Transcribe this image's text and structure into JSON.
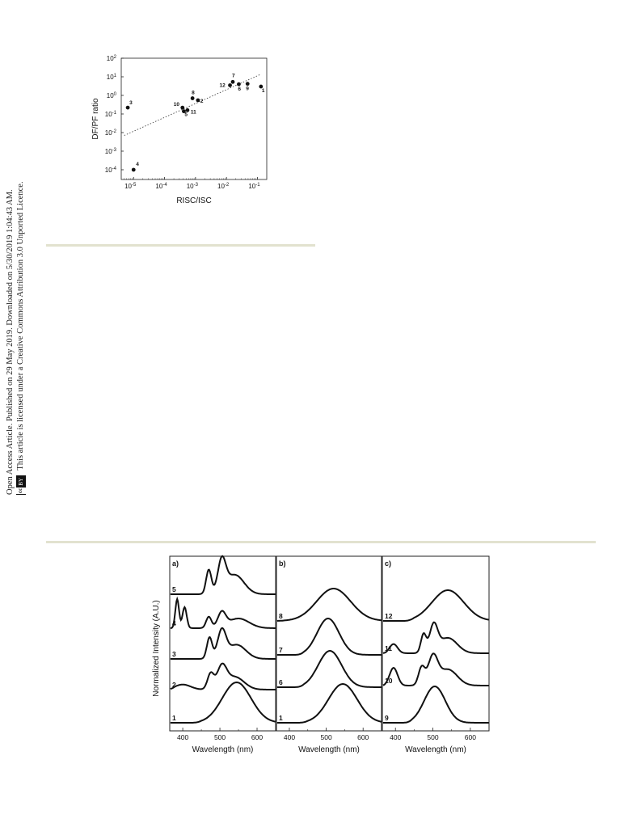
{
  "side_note": {
    "line1": "Open Access Article. Published on 29 May 2019. Downloaded on 5/30/2019 1:04:43 AM.",
    "line2": "This article is licensed under a Creative Commons Attribution 3.0 Unported Licence.",
    "badge_cc": "cc",
    "badge_by": "BY"
  },
  "chart_data": [
    {
      "type": "scatter",
      "xlabel": "RISC/ISC",
      "ylabel": "DF/PF ratio",
      "x_scale": "log",
      "y_scale": "log",
      "xlim": [
        4e-06,
        0.2
      ],
      "ylim": [
        3e-05,
        100
      ],
      "x_ticks": [
        "10-5",
        "10-4",
        "10-3",
        "10-2",
        "10-1"
      ],
      "y_ticks": [
        "10-4",
        "10-3",
        "10-2",
        "10-1",
        "100",
        "101",
        "102"
      ],
      "points": [
        {
          "label": "1",
          "x": 0.13,
          "y": 3.0
        },
        {
          "label": "2",
          "x": 0.0012,
          "y": 0.55
        },
        {
          "label": "3",
          "x": 6.5e-06,
          "y": 0.22
        },
        {
          "label": "4",
          "x": 1e-05,
          "y": 0.0001
        },
        {
          "label": "5",
          "x": 0.00042,
          "y": 0.14
        },
        {
          "label": "6",
          "x": 0.025,
          "y": 4.0
        },
        {
          "label": "7",
          "x": 0.016,
          "y": 5.3
        },
        {
          "label": "8",
          "x": 0.0008,
          "y": 0.7
        },
        {
          "label": "9",
          "x": 0.048,
          "y": 4.2
        },
        {
          "label": "10",
          "x": 0.00038,
          "y": 0.22
        },
        {
          "label": "11",
          "x": 0.00055,
          "y": 0.16
        },
        {
          "label": "12",
          "x": 0.013,
          "y": 3.5
        }
      ],
      "fit_line": {
        "x": [
          5e-06,
          0.12
        ],
        "y": [
          0.007,
          13
        ]
      },
      "grid": false,
      "legend": "none"
    },
    {
      "type": "line",
      "ylabel": "Normalized Intensity (A.U.)",
      "xlabel": "Wavelength (nm)",
      "xlim": [
        365,
        650
      ],
      "x_ticks": [
        400,
        500,
        600
      ],
      "y_units": "stacked, normalized",
      "panels": [
        {
          "label": "a)",
          "series": [
            {
              "name": "1",
              "offset": 0,
              "peaks": [
                {
                  "c": 545,
                  "a": 1.0,
                  "w": 55
                }
              ],
              "onset": 450
            },
            {
              "name": "2",
              "offset": 1,
              "peaks": [
                {
                  "c": 400,
                  "a": 0.18,
                  "w": 30
                },
                {
                  "c": 475,
                  "a": 0.55,
                  "w": 12
                },
                {
                  "c": 505,
                  "a": 0.75,
                  "w": 18
                },
                {
                  "c": 540,
                  "a": 0.45,
                  "w": 35
                }
              ],
              "onset": 380
            },
            {
              "name": "3",
              "offset": 2,
              "peaks": [
                {
                  "c": 472,
                  "a": 0.75,
                  "w": 10
                },
                {
                  "c": 505,
                  "a": 0.95,
                  "w": 16
                },
                {
                  "c": 545,
                  "a": 0.5,
                  "w": 35
                }
              ],
              "onset": 440
            },
            {
              "name": "4",
              "offset": 3,
              "peaks": [
                {
                  "c": 385,
                  "a": 0.9,
                  "w": 7
                },
                {
                  "c": 405,
                  "a": 0.65,
                  "w": 8
                },
                {
                  "c": 470,
                  "a": 0.35,
                  "w": 10
                },
                {
                  "c": 505,
                  "a": 0.45,
                  "w": 15
                },
                {
                  "c": 550,
                  "a": 0.3,
                  "w": 40
                }
              ],
              "onset": 375
            },
            {
              "name": "5",
              "offset": 4,
              "peaks": [
                {
                  "c": 470,
                  "a": 0.75,
                  "w": 10
                },
                {
                  "c": 505,
                  "a": 0.95,
                  "w": 15
                },
                {
                  "c": 540,
                  "a": 0.6,
                  "w": 35
                }
              ],
              "onset": 445
            }
          ]
        },
        {
          "label": "b)",
          "series": [
            {
              "name": "1",
              "offset": 0,
              "peaks": [
                {
                  "c": 545,
                  "a": 1.0,
                  "w": 55
                }
              ],
              "onset": 450
            },
            {
              "name": "6",
              "offset": 1,
              "peaks": [
                {
                  "c": 510,
                  "a": 1.0,
                  "w": 45
                }
              ],
              "onset": 440
            },
            {
              "name": "7",
              "offset": 2,
              "peaks": [
                {
                  "c": 505,
                  "a": 1.0,
                  "w": 42
                }
              ],
              "onset": 440
            },
            {
              "name": "8",
              "offset": 3,
              "peaks": [
                {
                  "c": 520,
                  "a": 1.0,
                  "w": 65
                }
              ],
              "onset": 385
            }
          ]
        },
        {
          "label": "c)",
          "series": [
            {
              "name": "9",
              "offset": 0,
              "peaks": [
                {
                  "c": 505,
                  "a": 1.0,
                  "w": 40
                }
              ],
              "onset": 445
            },
            {
              "name": "10",
              "offset": 1,
              "peaks": [
                {
                  "c": 395,
                  "a": 0.55,
                  "w": 15
                },
                {
                  "c": 470,
                  "a": 0.55,
                  "w": 12
                },
                {
                  "c": 500,
                  "a": 0.85,
                  "w": 18
                },
                {
                  "c": 540,
                  "a": 0.5,
                  "w": 35
                }
              ],
              "onset": 375
            },
            {
              "name": "11",
              "offset": 2,
              "peaks": [
                {
                  "c": 395,
                  "a": 0.3,
                  "w": 15
                },
                {
                  "c": 475,
                  "a": 0.6,
                  "w": 10
                },
                {
                  "c": 502,
                  "a": 0.85,
                  "w": 15
                },
                {
                  "c": 540,
                  "a": 0.5,
                  "w": 35
                }
              ],
              "onset": 380
            },
            {
              "name": "12",
              "offset": 3,
              "peaks": [
                {
                  "c": 540,
                  "a": 1.0,
                  "w": 60
                }
              ],
              "onset": 450
            }
          ]
        }
      ],
      "grid": false,
      "legend": "none"
    }
  ]
}
